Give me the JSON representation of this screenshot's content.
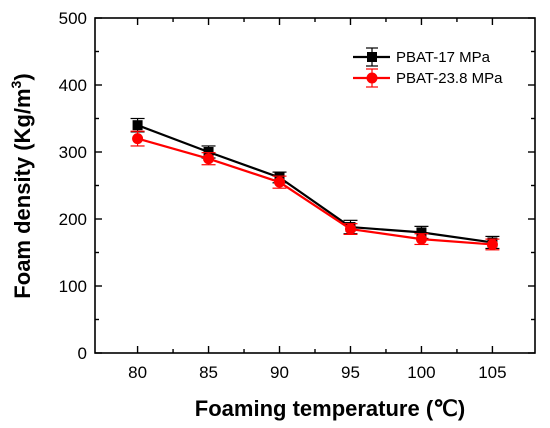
{
  "chart_data": {
    "type": "line",
    "xlabel": "Foaming temperature (℃)",
    "ylabel_main": "Foam density (Kg/m",
    "ylabel_sup": "3",
    "ylabel_close": ")",
    "x": [
      80,
      85,
      90,
      95,
      100,
      105
    ],
    "xlim": [
      77,
      108
    ],
    "ylim": [
      0,
      500
    ],
    "xticks": [
      "80",
      "85",
      "90",
      "95",
      "100",
      "105"
    ],
    "yticks": [
      "0",
      "100",
      "200",
      "300",
      "400",
      "500"
    ],
    "legend_position": "top-right",
    "series": [
      {
        "name": "PBAT-17 MPa",
        "color": "#000000",
        "marker": "square",
        "values": [
          340,
          300,
          262,
          188,
          180,
          165
        ],
        "errors": [
          10,
          9,
          8,
          10,
          9,
          9
        ]
      },
      {
        "name": "PBAT-23.8 MPa",
        "color": "#ff0000",
        "marker": "circle",
        "values": [
          320,
          290,
          255,
          185,
          170,
          162
        ],
        "errors": [
          11,
          9,
          9,
          8,
          8,
          8
        ]
      }
    ]
  }
}
